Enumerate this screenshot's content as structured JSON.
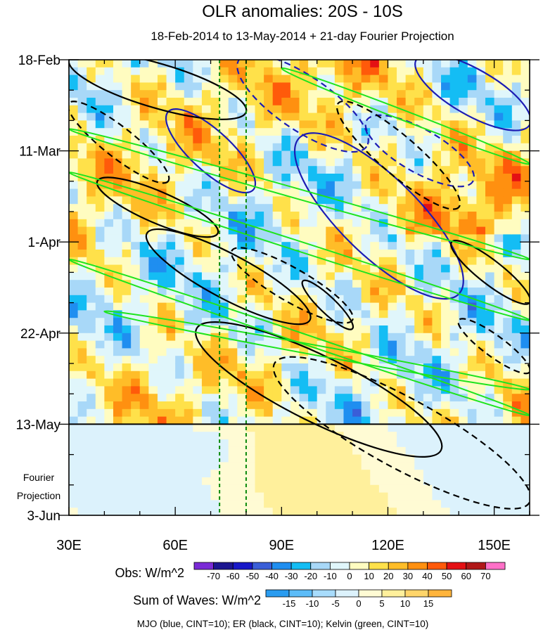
{
  "chart_data": {
    "type": "heatmap",
    "title": "OLR anomalies: 20S - 10S",
    "subtitle": "18-Feb-2014 to 13-May-2014 + 21-day Fourier Projection",
    "x_ticks": [
      {
        "value": 30,
        "label": "30E"
      },
      {
        "value": 60,
        "label": "60E"
      },
      {
        "value": 90,
        "label": "90E"
      },
      {
        "value": 120,
        "label": "120E"
      },
      {
        "value": 150,
        "label": "150E"
      }
    ],
    "xlim": [
      30,
      160
    ],
    "y_ticks": [
      {
        "value": 0,
        "label": "18-Feb"
      },
      {
        "value": 21,
        "label": "11-Mar"
      },
      {
        "value": 42,
        "label": "1-Apr"
      },
      {
        "value": 63,
        "label": "22-Apr"
      },
      {
        "value": 84,
        "label": "13-May"
      },
      {
        "value": 105,
        "label": "3-Jun"
      }
    ],
    "ylim_days": [
      0,
      105
    ],
    "projection_start_day": 84,
    "projection_label": [
      "Fourier",
      "Projection"
    ],
    "reference_lons": [
      72.5,
      80
    ],
    "obs_colorbar": {
      "label": "Obs: W/m^2",
      "levels": [
        -70,
        -60,
        -50,
        -40,
        -30,
        -20,
        -10,
        0,
        10,
        20,
        30,
        40,
        50,
        60,
        70
      ],
      "colors": [
        "#7a2ad6",
        "#1c1690",
        "#1818c8",
        "#3a5ed8",
        "#1f8ef0",
        "#14bdf4",
        "#a8d8f8",
        "#e0f6fb",
        "#fffcc0",
        "#ffe14a",
        "#ffbd28",
        "#ff9010",
        "#ff5a0a",
        "#e41014",
        "#b01818",
        "#ff70c8"
      ]
    },
    "waves_colorbar": {
      "label": "Sum of Waves: W/m^2",
      "levels": [
        -15,
        -10,
        -5,
        0,
        5,
        10,
        15
      ],
      "colors": [
        "#2a9cf0",
        "#5cbcf8",
        "#a8dcfc",
        "#dcf2fc",
        "#fffbd4",
        "#fff09c",
        "#ffd56a",
        "#ffb43c"
      ]
    },
    "footnote": "MJO (blue, CINT=10); ER (black, CINT=10); Kelvin (green, CINT=10)",
    "wave_contours": [
      {
        "wave": "MJO",
        "color": "#1c1cb4",
        "dashed": false,
        "lon": [
          58,
          82
        ],
        "day": [
          12,
          30
        ]
      },
      {
        "wave": "MJO",
        "color": "#1c1cb4",
        "dashed": false,
        "lon": [
          95,
          140
        ],
        "day": [
          18,
          54
        ]
      },
      {
        "wave": "MJO",
        "color": "#1c1cb4",
        "dashed": false,
        "lon": [
          128,
          160
        ],
        "day": [
          0,
          15
        ]
      },
      {
        "wave": "MJO",
        "color": "#1c1cb4",
        "dashed": true,
        "lon": [
          78,
          114
        ],
        "day": [
          0,
          20
        ]
      },
      {
        "wave": "MJO",
        "color": "#1c1cb4",
        "dashed": true,
        "lon": [
          114,
          144
        ],
        "day": [
          14,
          28
        ]
      },
      {
        "wave": "ER",
        "color": "#000000",
        "dashed": false,
        "lon": [
          38,
          72
        ],
        "day": [
          28,
          40
        ]
      },
      {
        "wave": "ER",
        "color": "#000000",
        "dashed": false,
        "lon": [
          52,
          98
        ],
        "day": [
          40,
          60
        ]
      },
      {
        "wave": "ER",
        "color": "#000000",
        "dashed": false,
        "lon": [
          66,
          135
        ],
        "day": [
          62,
          90
        ]
      },
      {
        "wave": "ER",
        "color": "#000000",
        "dashed": false,
        "lon": [
          96,
          110
        ],
        "day": [
          51,
          62
        ]
      },
      {
        "wave": "ER",
        "color": "#000000",
        "dashed": false,
        "lon": [
          138,
          160
        ],
        "day": [
          42,
          56
        ]
      },
      {
        "wave": "ER",
        "color": "#000000",
        "dashed": false,
        "lon": [
          30,
          80
        ],
        "day": [
          0,
          12
        ]
      },
      {
        "wave": "ER",
        "color": "#000000",
        "dashed": true,
        "lon": [
          76,
          110
        ],
        "day": [
          44,
          60
        ]
      },
      {
        "wave": "ER",
        "color": "#000000",
        "dashed": true,
        "lon": [
          30,
          58
        ],
        "day": [
          10,
          28
        ]
      },
      {
        "wave": "ER",
        "color": "#000000",
        "dashed": true,
        "lon": [
          106,
          140
        ],
        "day": [
          10,
          34
        ]
      },
      {
        "wave": "ER",
        "color": "#000000",
        "dashed": true,
        "lon": [
          88,
          160
        ],
        "day": [
          70,
          102
        ]
      },
      {
        "wave": "ER",
        "color": "#000000",
        "dashed": true,
        "lon": [
          140,
          160
        ],
        "day": [
          60,
          72
        ]
      },
      {
        "wave": "Kelvin",
        "color": "#1ee41e",
        "dashed": false,
        "lon": [
          30,
          160
        ],
        "day": [
          16,
          46
        ]
      },
      {
        "wave": "Kelvin",
        "color": "#1ee41e",
        "dashed": false,
        "lon": [
          30,
          160
        ],
        "day": [
          26,
          60
        ]
      },
      {
        "wave": "Kelvin",
        "color": "#1ee41e",
        "dashed": false,
        "lon": [
          30,
          160
        ],
        "day": [
          46,
          82
        ]
      },
      {
        "wave": "Kelvin",
        "color": "#1ee41e",
        "dashed": false,
        "lon": [
          40,
          160
        ],
        "day": [
          58,
          76
        ]
      },
      {
        "wave": "Kelvin",
        "color": "#1ee41e",
        "dashed": false,
        "lon": [
          90,
          160
        ],
        "day": [
          2,
          24
        ]
      }
    ]
  }
}
